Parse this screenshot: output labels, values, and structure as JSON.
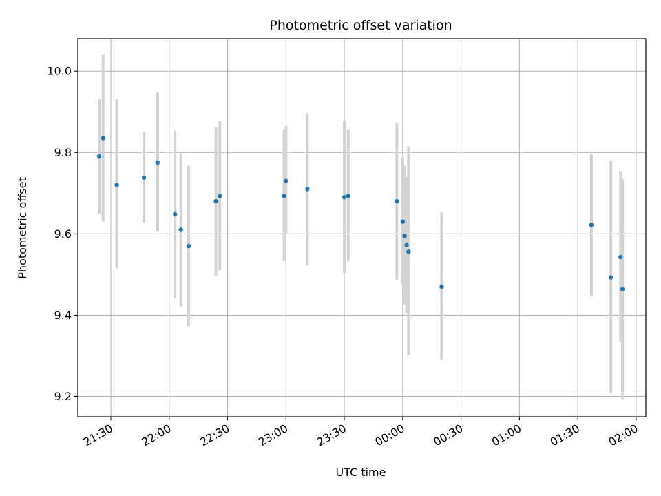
{
  "chart_data": {
    "type": "scatter",
    "title": "Photometric offset variation",
    "xlabel": "UTC time",
    "ylabel": "Photometric offset",
    "xlim": [
      "21:13",
      "02:05"
    ],
    "ylim": [
      9.15,
      10.08
    ],
    "grid": true,
    "x_ticks": [
      "21:30",
      "22:00",
      "22:30",
      "23:00",
      "23:30",
      "00:00",
      "00:30",
      "01:00",
      "01:30",
      "02:00"
    ],
    "y_ticks": [
      9.2,
      9.4,
      9.6,
      9.8,
      10.0
    ],
    "y_tick_labels": [
      "9.2",
      "9.4",
      "9.6",
      "9.8",
      "10.0"
    ],
    "point_color": "#1f77b4",
    "errorbar_color": "#d3d3d3",
    "points": [
      {
        "x": "21:24",
        "y": 9.79,
        "yerr_low": 9.65,
        "yerr_high": 9.93
      },
      {
        "x": "21:26",
        "y": 9.835,
        "yerr_low": 9.63,
        "yerr_high": 10.04
      },
      {
        "x": "21:33",
        "y": 9.72,
        "yerr_low": 9.515,
        "yerr_high": 9.93
      },
      {
        "x": "21:47",
        "y": 9.738,
        "yerr_low": 9.628,
        "yerr_high": 9.85
      },
      {
        "x": "21:54",
        "y": 9.775,
        "yerr_low": 9.605,
        "yerr_high": 9.948
      },
      {
        "x": "22:03",
        "y": 9.648,
        "yerr_low": 9.443,
        "yerr_high": 9.853
      },
      {
        "x": "22:06",
        "y": 9.61,
        "yerr_low": 9.422,
        "yerr_high": 9.798
      },
      {
        "x": "22:10",
        "y": 9.57,
        "yerr_low": 9.373,
        "yerr_high": 9.767
      },
      {
        "x": "22:24",
        "y": 9.68,
        "yerr_low": 9.498,
        "yerr_high": 9.862
      },
      {
        "x": "22:26",
        "y": 9.693,
        "yerr_low": 9.51,
        "yerr_high": 9.877
      },
      {
        "x": "22:59",
        "y": 9.693,
        "yerr_low": 9.533,
        "yerr_high": 9.856
      },
      {
        "x": "23:00",
        "y": 9.73,
        "yerr_low": 9.598,
        "yerr_high": 9.865
      },
      {
        "x": "23:11",
        "y": 9.71,
        "yerr_low": 9.523,
        "yerr_high": 9.897
      },
      {
        "x": "23:30",
        "y": 9.69,
        "yerr_low": 9.503,
        "yerr_high": 9.878
      },
      {
        "x": "23:32",
        "y": 9.693,
        "yerr_low": 9.532,
        "yerr_high": 9.857
      },
      {
        "x": "23:57",
        "y": 9.68,
        "yerr_low": 9.487,
        "yerr_high": 9.874
      },
      {
        "x": "00:00",
        "y": 9.63,
        "yerr_low": 9.475,
        "yerr_high": 9.787
      },
      {
        "x": "00:01",
        "y": 9.595,
        "yerr_low": 9.425,
        "yerr_high": 9.767
      },
      {
        "x": "00:02",
        "y": 9.572,
        "yerr_low": 9.405,
        "yerr_high": 9.74
      },
      {
        "x": "00:03",
        "y": 9.556,
        "yerr_low": 9.302,
        "yerr_high": 9.815
      },
      {
        "x": "00:20",
        "y": 9.47,
        "yerr_low": 9.29,
        "yerr_high": 9.653
      },
      {
        "x": "01:37",
        "y": 9.622,
        "yerr_low": 9.448,
        "yerr_high": 9.797
      },
      {
        "x": "01:47",
        "y": 9.493,
        "yerr_low": 9.208,
        "yerr_high": 9.78
      },
      {
        "x": "01:52",
        "y": 9.543,
        "yerr_low": 9.335,
        "yerr_high": 9.754
      },
      {
        "x": "01:53",
        "y": 9.464,
        "yerr_low": 9.193,
        "yerr_high": 9.734
      }
    ]
  }
}
